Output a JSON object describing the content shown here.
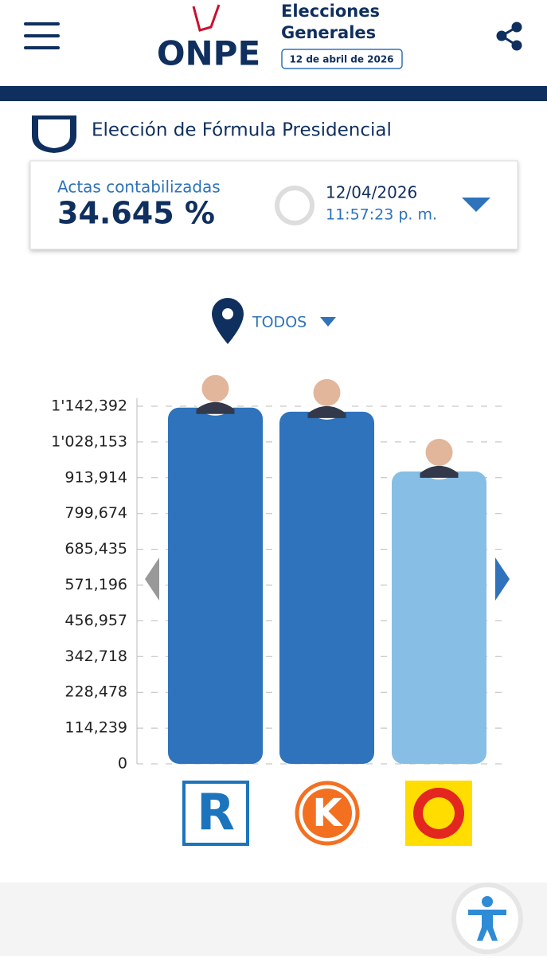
{
  "header": {
    "logo": "ONPE",
    "event_line1": "Elecciones",
    "event_line2": "Generales",
    "event_date": "12 de abril de 2026"
  },
  "section_title": "Elección de Fórmula Presidencial",
  "summary": {
    "label": "Actas contabilizadas",
    "percent": "34.645 %",
    "date": "12/04/2026",
    "time": "11:57:23 p. m."
  },
  "filter": "TODOS",
  "chart_data": {
    "type": "bar",
    "categories": [
      null,
      null,
      null
    ],
    "party_logos": [
      "R",
      "K"
    ],
    "values": [
      1138000,
      1125000,
      934000
    ],
    "colors": [
      "#2e73bb",
      "#2e73bb",
      "#87bee5"
    ],
    "ylim": [
      0,
      1142392
    ],
    "yticks": [
      {
        "value": 0,
        "label": "0"
      },
      {
        "value": 114239,
        "label": "114,239"
      },
      {
        "value": 228478,
        "label": "228,478"
      },
      {
        "value": 342718,
        "label": "342,718"
      },
      {
        "value": 456957,
        "label": "456,957"
      },
      {
        "value": 571196,
        "label": "571,196"
      },
      {
        "value": 685435,
        "label": "685,435"
      },
      {
        "value": 799674,
        "label": "799,674"
      },
      {
        "value": 913914,
        "label": "913,914"
      },
      {
        "value": 1028153,
        "label": "1'028,153"
      },
      {
        "value": 1142392,
        "label": "1'142,392"
      }
    ],
    "grid": true
  }
}
